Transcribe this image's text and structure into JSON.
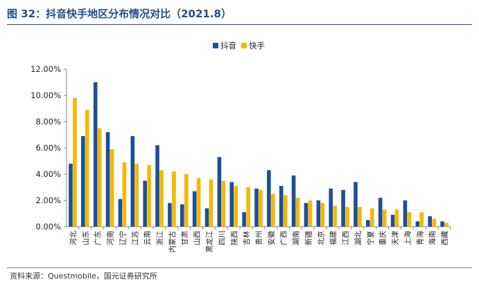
{
  "header": {
    "title": "图 32：抖音快手地区分布情况对比（2021.8）"
  },
  "footer": {
    "source": "资料来源：Questmobile，国元证券研究所"
  },
  "colors": {
    "accent": "#1f4e8c",
    "douyin": "#1a4f9c",
    "kuaishou": "#f5b800"
  },
  "chart_data": {
    "type": "bar",
    "title": "",
    "xlabel": "",
    "ylabel": "",
    "ylim": [
      0,
      12
    ],
    "yticks": [
      "0.00%",
      "2.00%",
      "4.00%",
      "6.00%",
      "8.00%",
      "10.00%",
      "12.00%"
    ],
    "grid": false,
    "legend_position": "top-center",
    "categories": [
      "河北",
      "山东",
      "广东",
      "河南",
      "辽宁",
      "江苏",
      "云南",
      "浙江",
      "内蒙古",
      "甘肃",
      "山西",
      "黑龙江",
      "四川",
      "陕西",
      "吉林",
      "贵州",
      "安徽",
      "广西",
      "湖南",
      "新疆",
      "北京",
      "福建",
      "江西",
      "湖北",
      "宁夏",
      "重庆",
      "天津",
      "上海",
      "青海",
      "海南",
      "西藏"
    ],
    "series": [
      {
        "name": "抖音",
        "values": [
          4.8,
          6.9,
          11.0,
          7.2,
          2.1,
          6.9,
          3.5,
          6.2,
          1.8,
          1.7,
          2.7,
          1.4,
          5.3,
          3.4,
          1.1,
          2.9,
          4.3,
          3.1,
          3.9,
          1.8,
          2.0,
          2.9,
          2.8,
          3.4,
          0.5,
          2.2,
          0.9,
          2.0,
          0.4,
          0.8,
          0.4
        ]
      },
      {
        "name": "快手",
        "values": [
          9.8,
          8.9,
          7.5,
          5.9,
          4.9,
          4.8,
          4.7,
          4.3,
          4.2,
          4.0,
          3.7,
          3.6,
          3.5,
          3.1,
          3.0,
          2.8,
          2.5,
          2.4,
          2.2,
          2.0,
          1.8,
          1.6,
          1.5,
          1.5,
          1.4,
          1.3,
          1.3,
          1.1,
          1.1,
          0.6,
          0.3
        ]
      }
    ]
  }
}
